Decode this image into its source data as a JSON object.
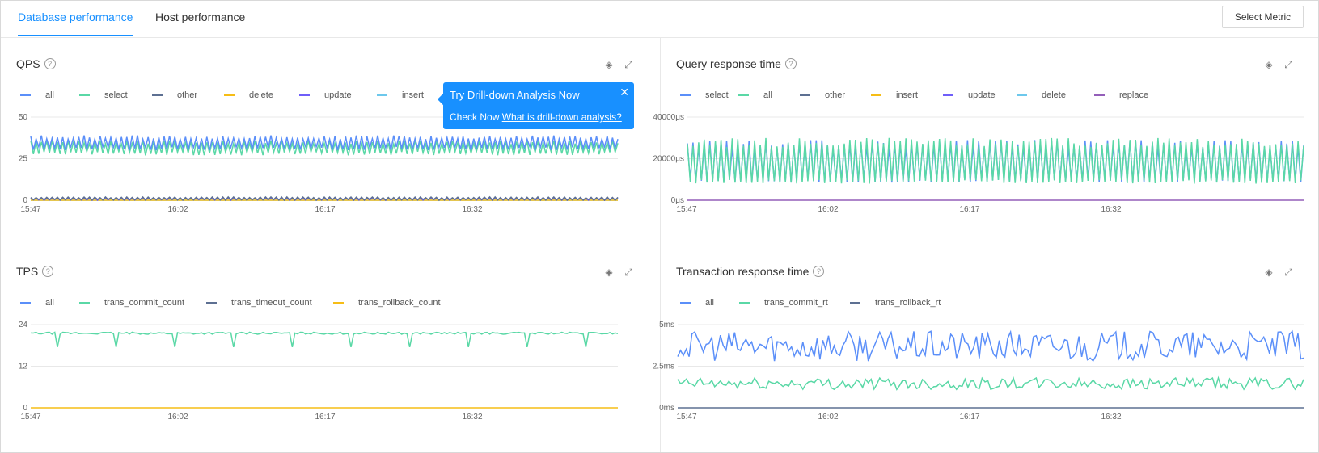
{
  "tabs": [
    {
      "label": "Database performance",
      "active": true
    },
    {
      "label": "Host performance",
      "active": false
    }
  ],
  "select_metric_label": "Select Metric",
  "popover": {
    "title": "Try Drill-down Analysis Now",
    "prefix": "Check Now",
    "link": "What is drill-down analysis?",
    "close": "✕"
  },
  "icons": {
    "help": "help-circle-icon",
    "drilldown": "drilldown-icon",
    "expand": "expand-icon",
    "close": "close-icon"
  },
  "panels": [
    {
      "title": "QPS",
      "legend": [
        {
          "name": "all",
          "color": "#5b8ff9"
        },
        {
          "name": "select",
          "color": "#5ad8a6"
        },
        {
          "name": "other",
          "color": "#5d7092"
        },
        {
          "name": "delete",
          "color": "#f6bd16"
        },
        {
          "name": "update",
          "color": "#6f5ef9"
        },
        {
          "name": "insert",
          "color": "#6dc8ec"
        }
      ]
    },
    {
      "title": "Query response time",
      "legend": [
        {
          "name": "select",
          "color": "#5b8ff9"
        },
        {
          "name": "all",
          "color": "#5ad8a6"
        },
        {
          "name": "other",
          "color": "#5d7092"
        },
        {
          "name": "insert",
          "color": "#f6bd16"
        },
        {
          "name": "update",
          "color": "#6f5ef9"
        },
        {
          "name": "delete",
          "color": "#6dc8ec"
        },
        {
          "name": "replace",
          "color": "#945fb9"
        }
      ]
    },
    {
      "title": "TPS",
      "legend": [
        {
          "name": "all",
          "color": "#5b8ff9"
        },
        {
          "name": "trans_commit_count",
          "color": "#5ad8a6"
        },
        {
          "name": "trans_timeout_count",
          "color": "#5d7092"
        },
        {
          "name": "trans_rollback_count",
          "color": "#f6bd16"
        }
      ]
    },
    {
      "title": "Transaction response time",
      "legend": [
        {
          "name": "all",
          "color": "#5b8ff9"
        },
        {
          "name": "trans_commit_rt",
          "color": "#5ad8a6"
        },
        {
          "name": "trans_rollback_rt",
          "color": "#5d7092"
        }
      ]
    }
  ],
  "chart_data": [
    {
      "type": "line",
      "title": "QPS",
      "ylim": [
        0,
        50
      ],
      "yticks": [
        "50",
        "25",
        "0"
      ],
      "xticks": [
        "15:47",
        "16:02",
        "16:17",
        "16:32"
      ],
      "series": [
        {
          "name": "all",
          "pattern": "oscillate",
          "low": 30,
          "high": 39,
          "color": "#5b8ff9"
        },
        {
          "name": "select",
          "pattern": "oscillate",
          "low": 27,
          "high": 36,
          "color": "#5ad8a6"
        },
        {
          "name": "other",
          "pattern": "oscillate",
          "low": 0,
          "high": 2,
          "color": "#5d7092"
        },
        {
          "name": "update",
          "pattern": "oscillate",
          "low": 0,
          "high": 1.5,
          "color": "#6f5ef9"
        },
        {
          "name": "delete",
          "pattern": "flat",
          "value": 0,
          "color": "#f6bd16"
        },
        {
          "name": "insert",
          "pattern": "flat",
          "value": 0,
          "color": "#6dc8ec"
        }
      ]
    },
    {
      "type": "line",
      "title": "Query response time",
      "ylim": [
        0,
        40000
      ],
      "yticks": [
        "40000μs",
        "20000μs",
        "0μs"
      ],
      "xticks": [
        "15:47",
        "16:02",
        "16:17",
        "16:32"
      ],
      "series": [
        {
          "name": "all",
          "pattern": "spikes",
          "low": 8000,
          "high": 30000,
          "color": "#5ad8a6"
        },
        {
          "name": "select",
          "pattern": "spikes",
          "low": 8500,
          "high": 29000,
          "color": "#5b8ff9"
        },
        {
          "name": "replace",
          "pattern": "flat",
          "value": 0,
          "color": "#945fb9"
        }
      ]
    },
    {
      "type": "line",
      "title": "TPS",
      "ylim": [
        0,
        24
      ],
      "yticks": [
        "24",
        "12",
        "0"
      ],
      "xticks": [
        "15:47",
        "16:02",
        "16:17",
        "16:32"
      ],
      "series": [
        {
          "name": "trans_commit_count",
          "pattern": "steady-dips",
          "value": 21.5,
          "dip": 17.5,
          "color": "#5ad8a6"
        },
        {
          "name": "trans_rollback_count",
          "pattern": "flat",
          "value": 0,
          "color": "#f6bd16"
        }
      ]
    },
    {
      "type": "line",
      "title": "Transaction response time",
      "ylim": [
        0,
        5
      ],
      "yticks": [
        "5ms",
        "2.5ms",
        "0ms"
      ],
      "xticks": [
        "15:47",
        "16:02",
        "16:17",
        "16:32"
      ],
      "series": [
        {
          "name": "all",
          "pattern": "noisy",
          "low": 2.8,
          "high": 4.6,
          "color": "#5b8ff9"
        },
        {
          "name": "trans_commit_rt",
          "pattern": "noisy",
          "low": 1.1,
          "high": 1.8,
          "color": "#5ad8a6"
        },
        {
          "name": "trans_rollback_rt",
          "pattern": "flat",
          "value": 0,
          "color": "#5d7092"
        }
      ]
    }
  ]
}
